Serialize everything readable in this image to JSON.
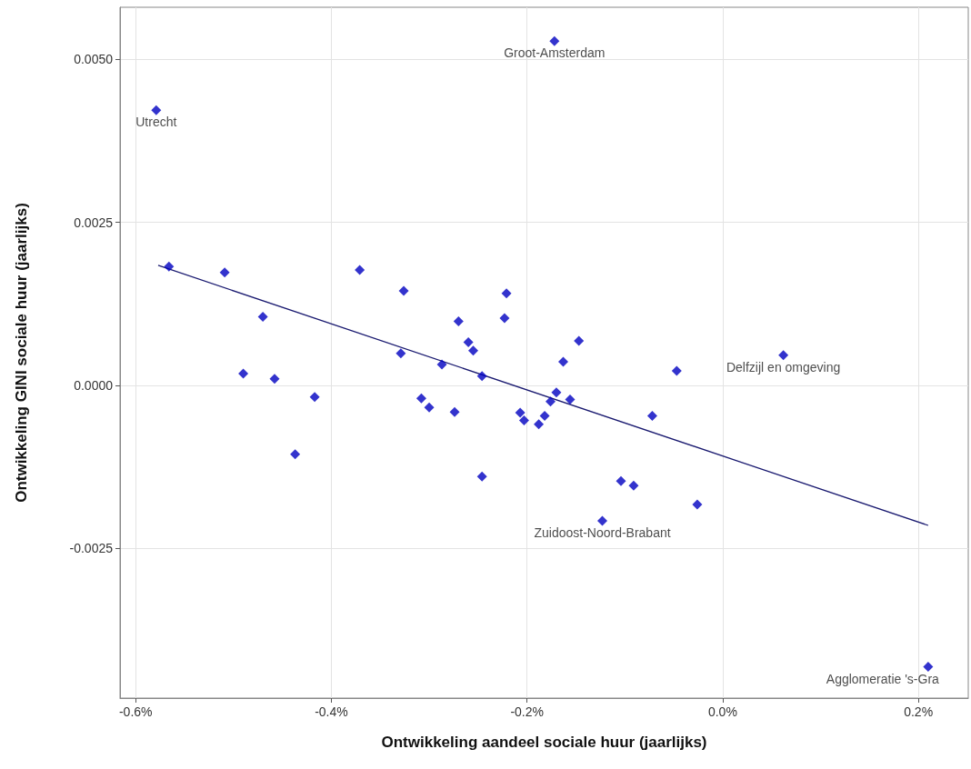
{
  "chart_data": {
    "type": "scatter",
    "xlabel": "Ontwikkeling aandeel sociale huur (jaarlijks)",
    "ylabel": "Ontwikkeling GINI sociale huur (jaarlijks)",
    "xlim": [
      -0.616,
      0.251
    ],
    "ylim": [
      -0.0048,
      0.0058
    ],
    "xticks": [
      {
        "value": -0.6,
        "label": "-0.6%"
      },
      {
        "value": -0.4,
        "label": "-0.4%"
      },
      {
        "value": -0.2,
        "label": "-0.2%"
      },
      {
        "value": 0,
        "label": "0.0%"
      },
      {
        "value": 0.2,
        "label": "0.2%"
      }
    ],
    "yticks": [
      {
        "value": -0.0025,
        "label": "-0.0025"
      },
      {
        "value": 0,
        "label": "0.0000"
      },
      {
        "value": 0.0025,
        "label": "0.0025"
      },
      {
        "value": 0.005,
        "label": "0.0050"
      }
    ],
    "grid": true,
    "marker": "diamond",
    "series": [
      {
        "color": "#0000c0",
        "x": [
          -0.579,
          -0.172,
          -0.566,
          -0.509,
          -0.47,
          -0.49,
          -0.458,
          -0.417,
          -0.437,
          -0.371,
          -0.326,
          -0.329,
          -0.27,
          -0.26,
          -0.255,
          -0.287,
          -0.246,
          -0.221,
          -0.223,
          -0.308,
          -0.3,
          -0.274,
          -0.246,
          -0.207,
          -0.203,
          -0.188,
          -0.147,
          -0.163,
          -0.17,
          -0.176,
          -0.156,
          -0.182,
          -0.047,
          -0.072,
          -0.104,
          -0.091,
          -0.026,
          -0.123,
          0.062,
          0.21
        ],
        "values": [
          0.00422,
          0.00528,
          0.00182,
          0.00173,
          0.00105,
          0.00018,
          0.0001,
          -0.00018,
          -0.00106,
          0.00177,
          0.00145,
          0.00049,
          0.00098,
          0.00066,
          0.00053,
          0.00032,
          0.00014,
          0.00141,
          0.00103,
          -0.0002,
          -0.00034,
          -0.00041,
          -0.0014,
          -0.00042,
          -0.00054,
          -0.0006,
          0.00068,
          0.00036,
          -0.00011,
          -0.00025,
          -0.00022,
          -0.00047,
          0.00022,
          -0.00047,
          -0.00147,
          -0.00154,
          -0.00183,
          -0.00208,
          0.00046,
          -0.00432
        ]
      },
      {
        "type": "line",
        "color": "#1a1a70",
        "marker": "none",
        "x": [
          -0.577,
          0.21
        ],
        "values": [
          0.00184,
          -0.00215
        ]
      }
    ],
    "annotations": [
      {
        "text": "Utrecht",
        "x": -0.579,
        "y": 0.00422
      },
      {
        "text": "Groot-Amsterdam",
        "x": -0.172,
        "y": 0.00528
      },
      {
        "text": "Delfzijl en omgeving",
        "x": 0.062,
        "y": 0.00046
      },
      {
        "text": "Zuidoost-Noord-Brabant",
        "x": -0.123,
        "y": -0.00208
      },
      {
        "text": "Agglomeratie 's-Gra",
        "x": 0.21,
        "y": -0.00432
      }
    ]
  }
}
